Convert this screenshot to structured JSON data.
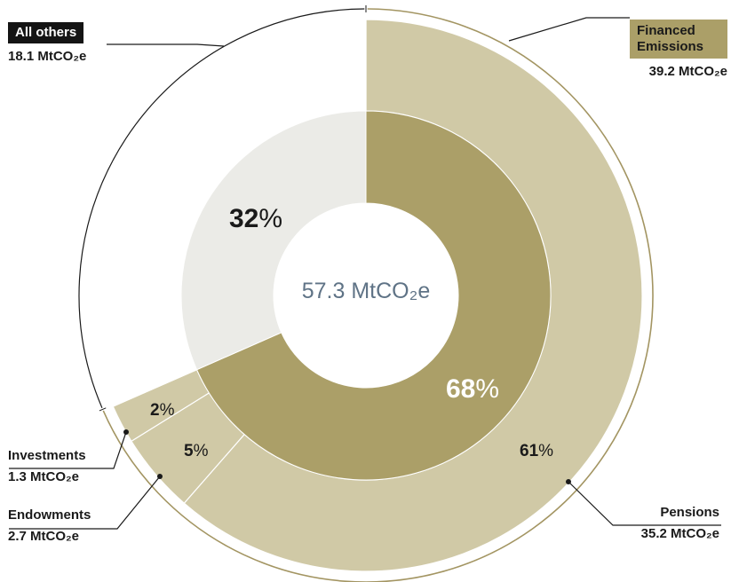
{
  "center_label": "57.3 MtCO₂e",
  "colors": {
    "financed_inner": "#ab9f68",
    "others_inner": "#ebebe7",
    "outer_segment": "#d0c9a6",
    "others_outer": "#ffffff",
    "tag_dark": "#141414",
    "tag_gold": "#ab9f68"
  },
  "chart_data": {
    "type": "pie",
    "title": "",
    "total": "57.3 MtCO₂e",
    "inner_ring": [
      {
        "name": "Financed Emissions",
        "value": 39.2,
        "unit": "MtCO₂e",
        "percent": 68,
        "value_label": "39.2 MtCO₂e"
      },
      {
        "name": "All others",
        "value": 18.1,
        "unit": "MtCO₂e",
        "percent": 32,
        "value_label": "18.1 MtCO₂e"
      }
    ],
    "outer_ring": [
      {
        "name": "Pensions",
        "value": 35.2,
        "unit": "MtCO₂e",
        "percent": 61,
        "value_label": "35.2 MtCO₂e"
      },
      {
        "name": "Endowments",
        "value": 2.7,
        "unit": "MtCO₂e",
        "percent": 5,
        "value_label": "2.7 MtCO₂e"
      },
      {
        "name": "Investments",
        "value": 1.3,
        "unit": "MtCO₂e",
        "percent": 2,
        "value_label": "1.3 MtCO₂e"
      },
      {
        "name": "All others",
        "value": 18.1,
        "unit": "MtCO₂e",
        "percent": 32,
        "value_label": "18.1 MtCO₂e"
      }
    ]
  }
}
